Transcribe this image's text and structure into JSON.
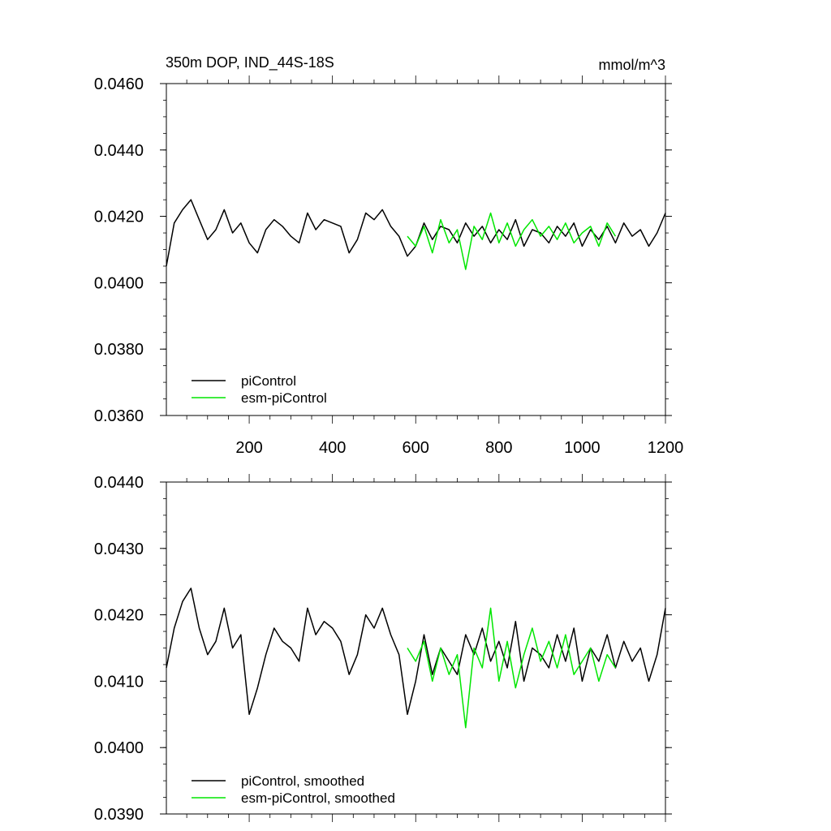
{
  "chart_data": [
    {
      "type": "line",
      "title": "350m DOP, IND_44S-18S",
      "units": "mmol/m^3",
      "xlim": [
        1,
        1200
      ],
      "ylim": [
        0.036,
        0.046
      ],
      "x_ticks": [
        200,
        400,
        600,
        800,
        1000,
        1200
      ],
      "x_tick_labels": [
        "200",
        "400",
        "600",
        "800",
        "1000",
        "1200"
      ],
      "y_ticks": [
        0.036,
        0.038,
        0.04,
        0.042,
        0.044,
        0.046
      ],
      "y_tick_labels": [
        "0.0360",
        "0.0380",
        "0.0400",
        "0.0420",
        "0.0440",
        "0.0460"
      ],
      "legend_position": "bottom-left",
      "grid": false,
      "series": [
        {
          "name": "piControl",
          "color": "#000000",
          "x": [
            1,
            20,
            40,
            60,
            80,
            100,
            120,
            140,
            160,
            180,
            200,
            220,
            240,
            260,
            280,
            300,
            320,
            340,
            360,
            380,
            400,
            420,
            440,
            460,
            480,
            500,
            520,
            540,
            560,
            580,
            600,
            620,
            640,
            660,
            680,
            700,
            720,
            740,
            760,
            780,
            800,
            820,
            840,
            860,
            880,
            900,
            920,
            940,
            960,
            980,
            1000,
            1020,
            1040,
            1060,
            1080,
            1100,
            1120,
            1140,
            1160,
            1180,
            1200
          ],
          "y": [
            0.0405,
            0.0418,
            0.0422,
            0.0425,
            0.0419,
            0.0413,
            0.0416,
            0.0422,
            0.0415,
            0.0418,
            0.0412,
            0.0409,
            0.0416,
            0.0419,
            0.0417,
            0.0414,
            0.0412,
            0.0421,
            0.0416,
            0.0419,
            0.0418,
            0.0417,
            0.0409,
            0.0413,
            0.0421,
            0.0419,
            0.0422,
            0.0417,
            0.0414,
            0.0408,
            0.0411,
            0.0418,
            0.0413,
            0.0417,
            0.0416,
            0.0412,
            0.0418,
            0.0414,
            0.0417,
            0.0412,
            0.0416,
            0.0413,
            0.0419,
            0.0411,
            0.0416,
            0.0415,
            0.0412,
            0.0417,
            0.0414,
            0.0418,
            0.0411,
            0.0416,
            0.0413,
            0.0417,
            0.0412,
            0.0418,
            0.0414,
            0.0416,
            0.0411,
            0.0415,
            0.0421
          ]
        },
        {
          "name": "esm-piControl",
          "color": "#00e600",
          "x": [
            580,
            600,
            620,
            640,
            660,
            680,
            700,
            720,
            740,
            760,
            780,
            800,
            820,
            840,
            860,
            880,
            900,
            920,
            940,
            960,
            980,
            1000,
            1020,
            1040,
            1060,
            1080
          ],
          "y": [
            0.0414,
            0.0411,
            0.0417,
            0.0409,
            0.0419,
            0.0412,
            0.0416,
            0.0404,
            0.0417,
            0.0413,
            0.0421,
            0.0412,
            0.0418,
            0.0411,
            0.0416,
            0.0419,
            0.0414,
            0.0417,
            0.0413,
            0.0418,
            0.0412,
            0.0415,
            0.0417,
            0.0411,
            0.0418,
            0.0414
          ]
        }
      ]
    },
    {
      "type": "line",
      "xlim": [
        1,
        1200
      ],
      "ylim": [
        0.039,
        0.044
      ],
      "y_ticks": [
        0.039,
        0.04,
        0.041,
        0.042,
        0.043,
        0.044
      ],
      "y_tick_labels": [
        "0.0390",
        "0.0400",
        "0.0410",
        "0.0420",
        "0.0430",
        "0.0440"
      ],
      "legend_position": "bottom-left",
      "grid": false,
      "series": [
        {
          "name": "piControl, smoothed",
          "color": "#000000",
          "x": [
            1,
            20,
            40,
            60,
            80,
            100,
            120,
            140,
            160,
            180,
            200,
            220,
            240,
            260,
            280,
            300,
            320,
            340,
            360,
            380,
            400,
            420,
            440,
            460,
            480,
            500,
            520,
            540,
            560,
            580,
            600,
            620,
            640,
            660,
            680,
            700,
            720,
            740,
            760,
            780,
            800,
            820,
            840,
            860,
            880,
            900,
            920,
            940,
            960,
            980,
            1000,
            1020,
            1040,
            1060,
            1080,
            1100,
            1120,
            1140,
            1160,
            1180,
            1200
          ],
          "y": [
            0.0412,
            0.0418,
            0.0422,
            0.0424,
            0.0418,
            0.0414,
            0.0416,
            0.0421,
            0.0415,
            0.0417,
            0.0405,
            0.0409,
            0.0414,
            0.0418,
            0.0416,
            0.0415,
            0.0413,
            0.0421,
            0.0417,
            0.0419,
            0.0418,
            0.0416,
            0.0411,
            0.0414,
            0.042,
            0.0418,
            0.0421,
            0.0417,
            0.0414,
            0.0405,
            0.041,
            0.0417,
            0.0411,
            0.0415,
            0.0413,
            0.0411,
            0.0417,
            0.0414,
            0.0418,
            0.0413,
            0.0416,
            0.0412,
            0.0419,
            0.041,
            0.0415,
            0.0414,
            0.0412,
            0.0417,
            0.0413,
            0.0418,
            0.041,
            0.0415,
            0.0413,
            0.0417,
            0.0412,
            0.0416,
            0.0413,
            0.0415,
            0.041,
            0.0414,
            0.0421
          ]
        },
        {
          "name": "esm-piControl, smoothed",
          "color": "#00e600",
          "x": [
            580,
            600,
            620,
            640,
            660,
            680,
            700,
            720,
            740,
            760,
            780,
            800,
            820,
            840,
            860,
            880,
            900,
            920,
            940,
            960,
            980,
            1000,
            1020,
            1040,
            1060,
            1080
          ],
          "y": [
            0.0415,
            0.0413,
            0.0416,
            0.041,
            0.0415,
            0.0411,
            0.0414,
            0.0403,
            0.0415,
            0.0412,
            0.0421,
            0.041,
            0.0416,
            0.0409,
            0.0414,
            0.0418,
            0.0413,
            0.0416,
            0.0412,
            0.0417,
            0.0411,
            0.0413,
            0.0415,
            0.041,
            0.0414,
            0.0412
          ]
        }
      ]
    }
  ]
}
